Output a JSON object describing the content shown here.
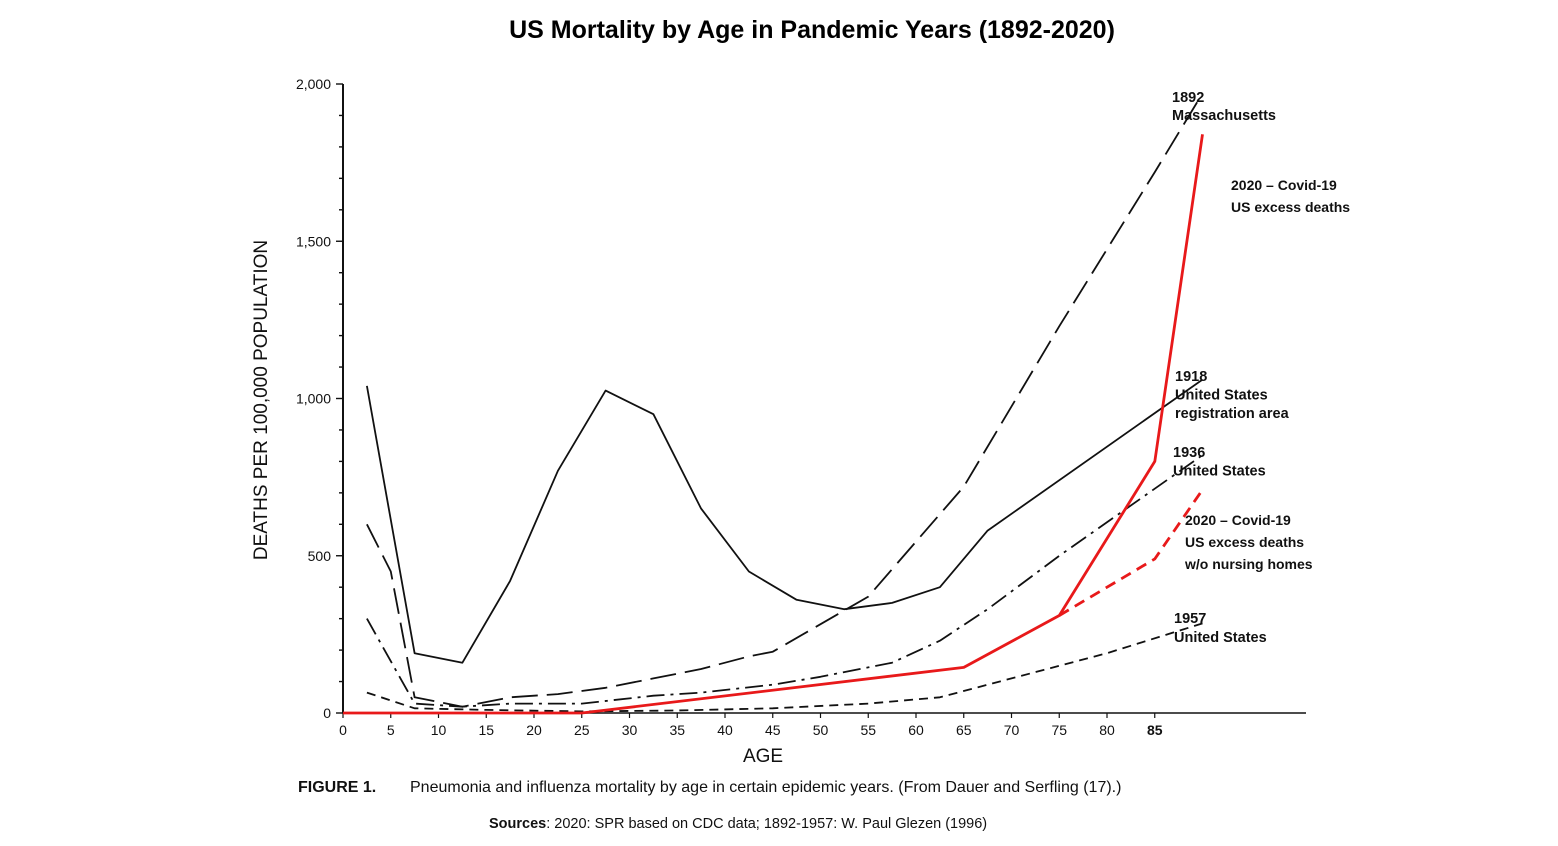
{
  "chart_data": {
    "type": "line",
    "title": "US Mortality by Age in Pandemic Years (1892-2020)",
    "xlabel": "AGE",
    "ylabel": "DEATHS PER 100,000 POPULATION",
    "xlim": [
      0,
      100
    ],
    "ylim": [
      0,
      2000
    ],
    "x_ticks": [
      0,
      5,
      10,
      15,
      20,
      25,
      30,
      35,
      40,
      45,
      50,
      55,
      60,
      65,
      70,
      75,
      80,
      85
    ],
    "x_tick_labels": [
      "0",
      "5",
      "10",
      "15",
      "20",
      "25",
      "30",
      "35",
      "40",
      "45",
      "50",
      "55",
      "60",
      "65",
      "70",
      "75",
      "80",
      "85"
    ],
    "y_ticks": [
      0,
      500,
      1000,
      1500,
      2000
    ],
    "y_tick_labels": [
      "0",
      "500",
      "1,000",
      "1,500",
      "2,000"
    ],
    "grid": false,
    "legend_placement": "right (inline labels at line ends)",
    "series": [
      {
        "name": "1892 Massachusetts",
        "label_lines": [
          "1892",
          "Massachusetts"
        ],
        "color": "#111111",
        "style": "long-dash",
        "x": [
          2.5,
          5,
          7.5,
          12.5,
          17.5,
          22.5,
          27.5,
          32.5,
          37.5,
          42.5,
          45,
          55,
          65,
          75,
          85,
          90
        ],
        "y": [
          600,
          450,
          50,
          20,
          50,
          60,
          80,
          110,
          140,
          180,
          195,
          370,
          720,
          1230,
          1720,
          1970
        ]
      },
      {
        "name": "1918 United States registration area",
        "label_lines": [
          "1918",
          "United States",
          "registration area"
        ],
        "color": "#111111",
        "style": "solid",
        "x": [
          2.5,
          7.5,
          12.5,
          17.5,
          22.5,
          27.5,
          32.5,
          37.5,
          42.5,
          47.5,
          52.5,
          57.5,
          62.5,
          67.5,
          90
        ],
        "y": [
          1040,
          190,
          160,
          420,
          770,
          1025,
          950,
          650,
          450,
          360,
          330,
          350,
          400,
          580,
          1060
        ]
      },
      {
        "name": "1936 United States",
        "label_lines": [
          "1936",
          "United States"
        ],
        "color": "#111111",
        "style": "dash-dot",
        "x": [
          2.5,
          7.5,
          12.5,
          17.5,
          25,
          32.5,
          37.5,
          45,
          50,
          57.5,
          62.5,
          67.5,
          75,
          90
        ],
        "y": [
          300,
          30,
          20,
          30,
          30,
          55,
          65,
          90,
          115,
          160,
          230,
          330,
          500,
          820
        ]
      },
      {
        "name": "1957 United States",
        "label_lines": [
          "1957",
          "United States"
        ],
        "color": "#111111",
        "style": "short-dash",
        "x": [
          2.5,
          7.5,
          15,
          25,
          35,
          45,
          55,
          62.5,
          70,
          80,
          90
        ],
        "y": [
          65,
          15,
          10,
          5,
          8,
          15,
          30,
          50,
          110,
          190,
          285
        ]
      },
      {
        "name": "2020 – Covid-19 US excess deaths",
        "label_lines": [
          "2020 – Covid-19",
          "US excess deaths"
        ],
        "color": "#e8191a",
        "style": "solid",
        "x": [
          0,
          25,
          65,
          75,
          85,
          90
        ],
        "y": [
          0,
          0,
          145,
          310,
          800,
          1840
        ]
      },
      {
        "name": "2020 – Covid-19 US excess deaths w/o nursing homes",
        "label_lines": [
          "2020 – Covid-19",
          "US excess deaths",
          "w/o nursing homes"
        ],
        "color": "#e8191a",
        "style": "dashed",
        "x": [
          75,
          85,
          90
        ],
        "y": [
          310,
          490,
          710
        ]
      }
    ],
    "caption": {
      "label": "FIGURE 1.",
      "text": "Pneumonia and influenza mortality by age in certain epidemic years. (From Dauer and Serfling (17).)"
    },
    "sources": {
      "label": "Sources",
      "text": ": 2020: SPR based on CDC data; 1892-1957: W. Paul Glezen (1996)"
    }
  }
}
